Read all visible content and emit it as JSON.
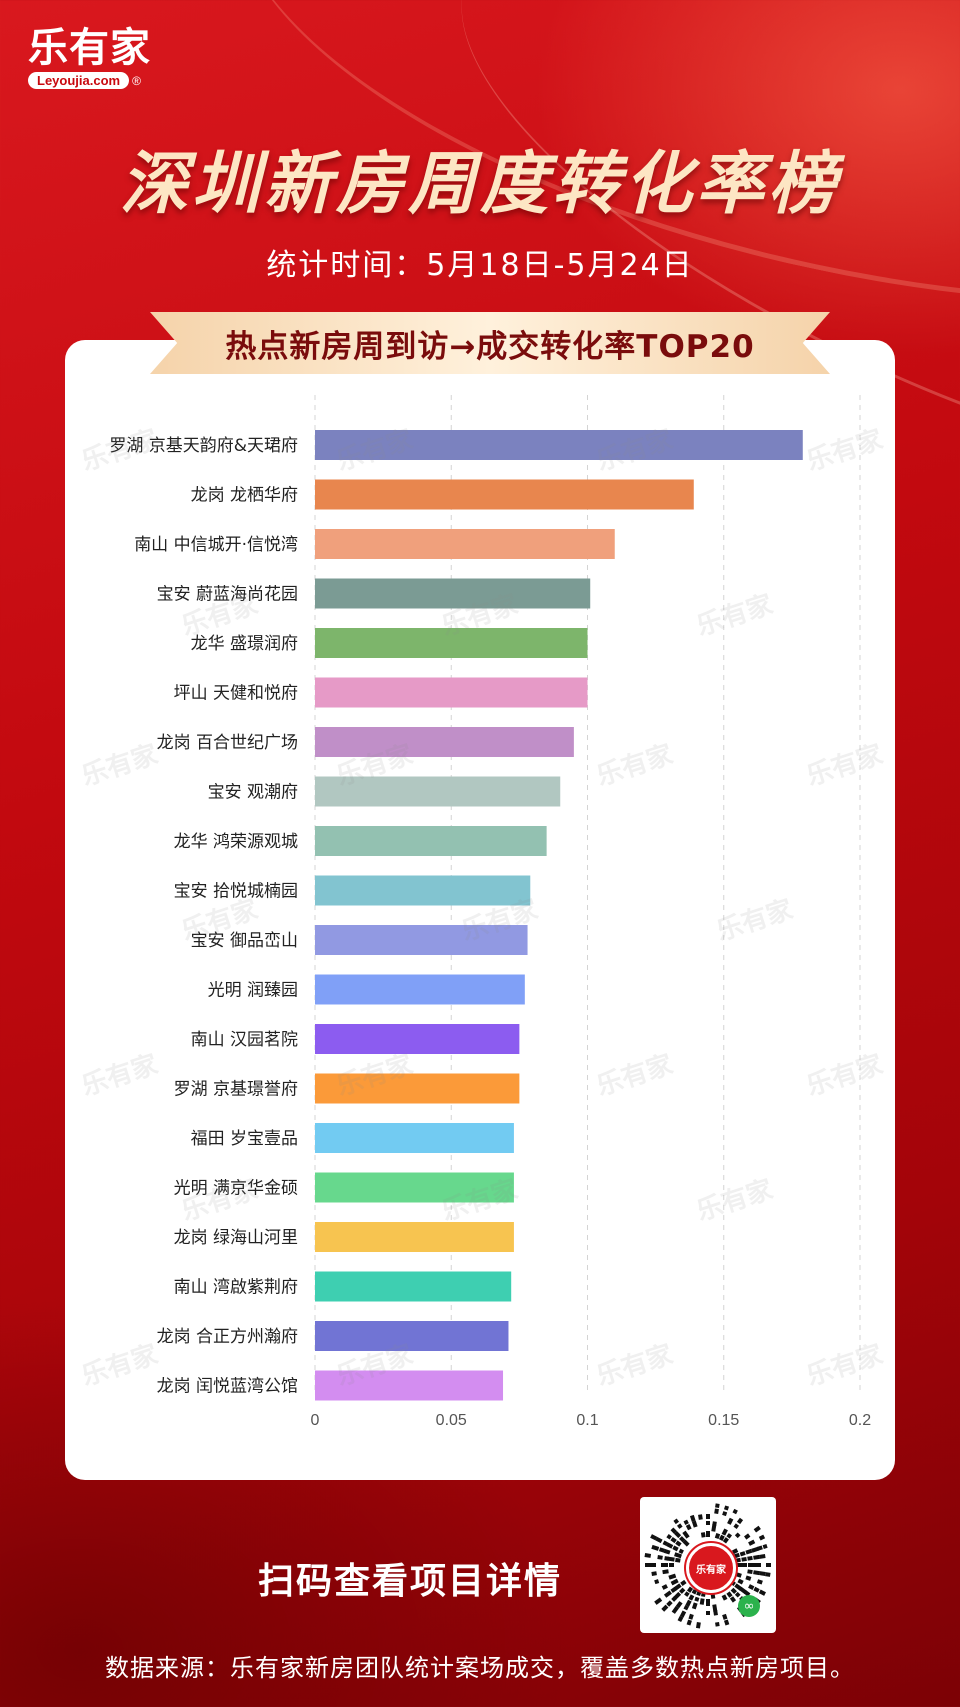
{
  "brand": {
    "logo_text": "乐有家",
    "logo_sub": "Leyoujia.com",
    "logo_reg": "®"
  },
  "header": {
    "title": "深圳新房周度转化率榜",
    "period": "统计时间：5月18日-5月24日",
    "ribbon": "热点新房周到访→成交转化率TOP20"
  },
  "watermark": {
    "text": "乐有家"
  },
  "chart_data": {
    "type": "bar",
    "orientation": "horizontal",
    "title": "热点新房周到访→成交转化率TOP20",
    "categories": [
      "罗湖 京基天韵府&天珺府",
      "龙岗 龙栖华府",
      "南山 中信城开·信悦湾",
      "宝安 蔚蓝海尚花园",
      "龙华 盛璟润府",
      "坪山 天健和悦府",
      "龙岗 百合世纪广场",
      "宝安 观潮府",
      "龙华 鸿荣源观城",
      "宝安 拾悦城楠园",
      "宝安 御品峦山",
      "光明 润臻园",
      "南山 汉园茗院",
      "罗湖 京基璟誉府",
      "福田 岁宝壹品",
      "光明 满京华金硕",
      "龙岗 绿海山河里",
      "南山 湾啟紫荆府",
      "龙岗 合正方州瀚府",
      "龙岗 闰悦蓝湾公馆"
    ],
    "values": [
      0.179,
      0.139,
      0.11,
      0.101,
      0.1,
      0.1,
      0.095,
      0.09,
      0.085,
      0.079,
      0.078,
      0.077,
      0.075,
      0.075,
      0.073,
      0.073,
      0.073,
      0.072,
      0.071,
      0.069
    ],
    "colors": [
      "#7b82bf",
      "#e8864e",
      "#f0a07c",
      "#7b9b94",
      "#7db56b",
      "#e69ac7",
      "#c08fc8",
      "#b1c7c1",
      "#93c1b1",
      "#82c4d0",
      "#9199e2",
      "#80a0f7",
      "#8c5cf0",
      "#fb9a39",
      "#72cbf2",
      "#67d88d",
      "#f7c450",
      "#3ecfb1",
      "#7174d4",
      "#d38df0"
    ],
    "x_ticks": [
      "0",
      "0.05",
      "0.1",
      "0.15",
      "0.2"
    ],
    "xlim": [
      0,
      0.2
    ],
    "grid": "vertical dashed",
    "xlabel": "",
    "ylabel": ""
  },
  "footer": {
    "qr_caption": "扫码查看项目详情",
    "qr_logo": "乐有家",
    "source": "数据来源：乐有家新房团队统计案场成交，覆盖多数热点新房项目。"
  },
  "colors": {
    "background": "#c2090f",
    "title_text": "#fde6c4",
    "ribbon_text": "#7a0c0c",
    "card": "#ffffff"
  }
}
